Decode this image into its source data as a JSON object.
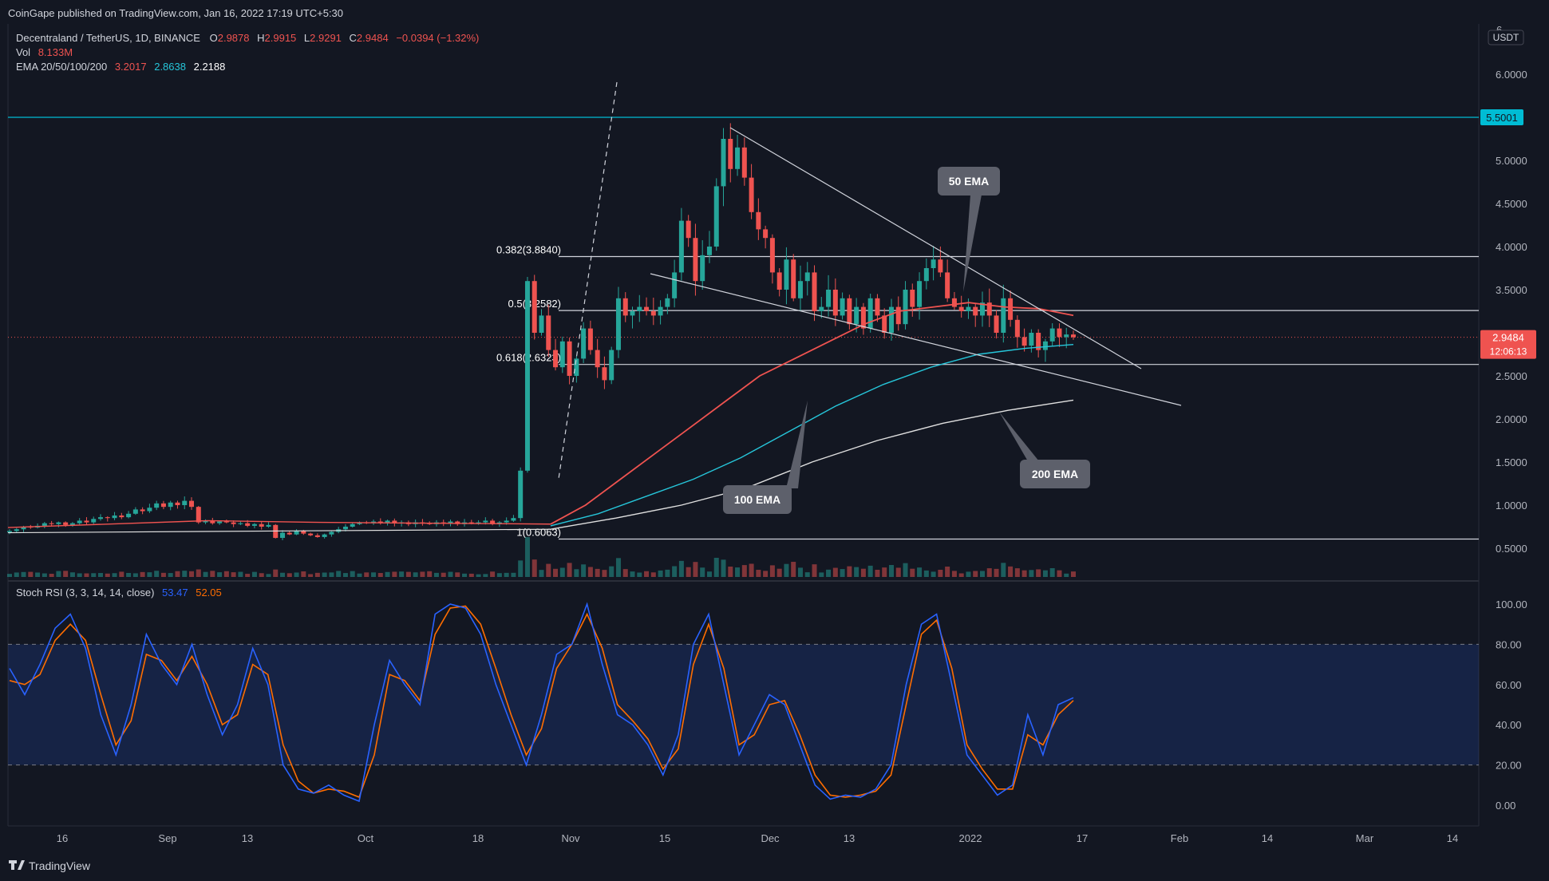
{
  "header": {
    "published": "CoinGape published on TradingView.com, Jan 16, 2022 17:19 UTC+5:30"
  },
  "legend": {
    "symbol": "Decentraland / TetherUS, 1D, BINANCE",
    "o_label": "O",
    "o_value": "2.9878",
    "h_label": "H",
    "h_value": "2.9915",
    "l_label": "L",
    "l_value": "2.9291",
    "c_label": "C",
    "c_value": "2.9484",
    "change": "−0.0394 (−1.32%)",
    "vol_label": "Vol",
    "vol_value": "8.133M",
    "ema_label": "EMA 20/50/100/200",
    "ema_v1": "3.2017",
    "ema_v2": "2.8638",
    "ema_v3": "2.2188"
  },
  "price_scale": {
    "currency": "USDT",
    "top_partial": "6",
    "ticks": [
      {
        "label": "6.0000",
        "value": 6.0
      },
      {
        "label": "5.0000",
        "value": 5.0
      },
      {
        "label": "4.5000",
        "value": 4.5
      },
      {
        "label": "4.0000",
        "value": 4.0
      },
      {
        "label": "3.5000",
        "value": 3.5
      },
      {
        "label": "2.5000",
        "value": 2.5
      },
      {
        "label": "2.0000",
        "value": 2.0
      },
      {
        "label": "1.5000",
        "value": 1.5
      },
      {
        "label": "1.0000",
        "value": 1.0
      },
      {
        "label": "0.5000",
        "value": 0.5
      }
    ],
    "hline_label": "5.5001",
    "last_price": "2.9484",
    "countdown": "12:06:13"
  },
  "time_axis": [
    "16",
    "Sep",
    "13",
    "Oct",
    "18",
    "Nov",
    "15",
    "Dec",
    "13",
    "2022",
    "17",
    "Feb",
    "14",
    "Mar",
    "14"
  ],
  "fib_labels": [
    {
      "label": "0.382(3.8840)",
      "value": 3.884
    },
    {
      "label": "0.5(3.2582)",
      "value": 3.2582
    },
    {
      "label": "0.618(2.6323)",
      "value": 2.6323
    },
    {
      "label": "1(0.6063)",
      "value": 0.6063
    }
  ],
  "annotations": {
    "ema50": "50 EMA",
    "ema100": "100 EMA",
    "ema200": "200 EMA"
  },
  "stoch": {
    "label": "Stoch RSI (3, 3, 14, 14, close)",
    "k_value": "53.47",
    "d_value": "52.05",
    "ticks": [
      "100.00",
      "80.00",
      "60.00",
      "40.00",
      "20.00",
      "0.00"
    ]
  },
  "footer": {
    "brand": "TradingView"
  },
  "colors": {
    "background": "#131722",
    "up": "#26a69a",
    "down": "#ef5350",
    "ema50": "#ef5350",
    "ema100": "#26c6da",
    "ema200": "#e0e0e0",
    "hline": "#00bcd4",
    "stoch_k": "#2962ff",
    "stoch_d": "#ff6d00"
  },
  "chart_data": {
    "type": "candlestick",
    "title": "Decentraland / TetherUS, 1D, BINANCE",
    "ylim": [
      0.3,
      6.2
    ],
    "horizontal_line": 5.5001,
    "fib_levels": [
      3.884,
      3.2582,
      2.6323,
      0.6063
    ],
    "daily_closes": [
      0.7,
      0.72,
      0.75,
      0.74,
      0.76,
      0.79,
      0.78,
      0.8,
      0.77,
      0.79,
      0.82,
      0.8,
      0.84,
      0.86,
      0.85,
      0.88,
      0.86,
      0.9,
      0.95,
      0.93,
      0.97,
      1.02,
      0.98,
      1.03,
      1.0,
      1.05,
      0.98,
      0.8,
      0.82,
      0.79,
      0.81,
      0.8,
      0.78,
      0.79,
      0.76,
      0.78,
      0.75,
      0.77,
      0.62,
      0.68,
      0.66,
      0.7,
      0.67,
      0.65,
      0.63,
      0.66,
      0.69,
      0.72,
      0.75,
      0.78,
      0.8,
      0.79,
      0.81,
      0.8,
      0.82,
      0.79,
      0.8,
      0.78,
      0.8,
      0.79,
      0.78,
      0.8,
      0.79,
      0.81,
      0.78,
      0.8,
      0.79,
      0.8,
      0.82,
      0.78,
      0.8,
      0.82,
      0.85,
      1.4,
      3.6,
      3.0,
      3.2,
      2.8,
      2.6,
      2.9,
      2.5,
      2.7,
      3.05,
      2.8,
      2.6,
      2.45,
      2.8,
      3.4,
      3.2,
      3.25,
      3.3,
      3.25,
      3.2,
      3.3,
      3.4,
      3.7,
      4.3,
      4.1,
      3.6,
      3.9,
      4.0,
      4.7,
      5.25,
      4.9,
      5.15,
      4.8,
      4.4,
      4.2,
      4.1,
      3.7,
      3.5,
      3.85,
      3.4,
      3.6,
      3.7,
      3.25,
      3.3,
      3.5,
      3.2,
      3.4,
      3.1,
      3.3,
      3.05,
      3.4,
      3.2,
      3.0,
      3.3,
      3.1,
      3.5,
      3.3,
      3.6,
      3.75,
      3.85,
      3.7,
      3.4,
      3.3,
      3.25,
      3.3,
      3.2,
      3.35,
      3.2,
      3.0,
      3.4,
      3.15,
      2.95,
      2.85,
      3.0,
      2.8,
      2.9,
      3.05,
      2.95,
      2.98,
      2.9484
    ],
    "ema50": [
      0.78,
      1.0,
      1.3,
      1.6,
      1.9,
      2.2,
      2.5,
      2.7,
      2.9,
      3.1,
      3.25,
      3.3,
      3.35,
      3.3,
      3.28,
      3.2017
    ],
    "ema100": [
      0.76,
      0.9,
      1.1,
      1.3,
      1.55,
      1.85,
      2.15,
      2.4,
      2.6,
      2.75,
      2.82,
      2.8638
    ],
    "ema200": [
      0.72,
      0.85,
      1.0,
      1.2,
      1.5,
      1.75,
      1.95,
      2.1,
      2.2188
    ],
    "stoch_rsi": {
      "k": [
        68,
        55,
        70,
        88,
        95,
        78,
        45,
        25,
        50,
        85,
        70,
        60,
        80,
        55,
        35,
        50,
        78,
        60,
        20,
        8,
        6,
        10,
        5,
        2,
        40,
        72,
        60,
        50,
        95,
        100,
        98,
        85,
        60,
        40,
        20,
        45,
        75,
        80,
        100,
        70,
        45,
        40,
        30,
        15,
        35,
        80,
        95,
        60,
        25,
        40,
        55,
        50,
        30,
        10,
        3,
        5,
        4,
        8,
        20,
        60,
        90,
        95,
        60,
        25,
        15,
        5,
        10,
        45,
        25,
        50,
        53.47
      ],
      "d": [
        62,
        60,
        65,
        82,
        90,
        82,
        55,
        30,
        42,
        75,
        72,
        62,
        74,
        60,
        40,
        45,
        70,
        65,
        30,
        12,
        6,
        8,
        7,
        4,
        25,
        65,
        62,
        52,
        85,
        98,
        99,
        90,
        68,
        45,
        25,
        38,
        68,
        80,
        95,
        78,
        50,
        42,
        33,
        18,
        28,
        70,
        90,
        68,
        30,
        35,
        50,
        52,
        35,
        15,
        5,
        4,
        5,
        7,
        15,
        50,
        85,
        92,
        68,
        30,
        18,
        8,
        8,
        35,
        30,
        45,
        52.05
      ],
      "ylim": [
        0,
        100
      ],
      "bands": [
        20,
        80
      ]
    }
  }
}
